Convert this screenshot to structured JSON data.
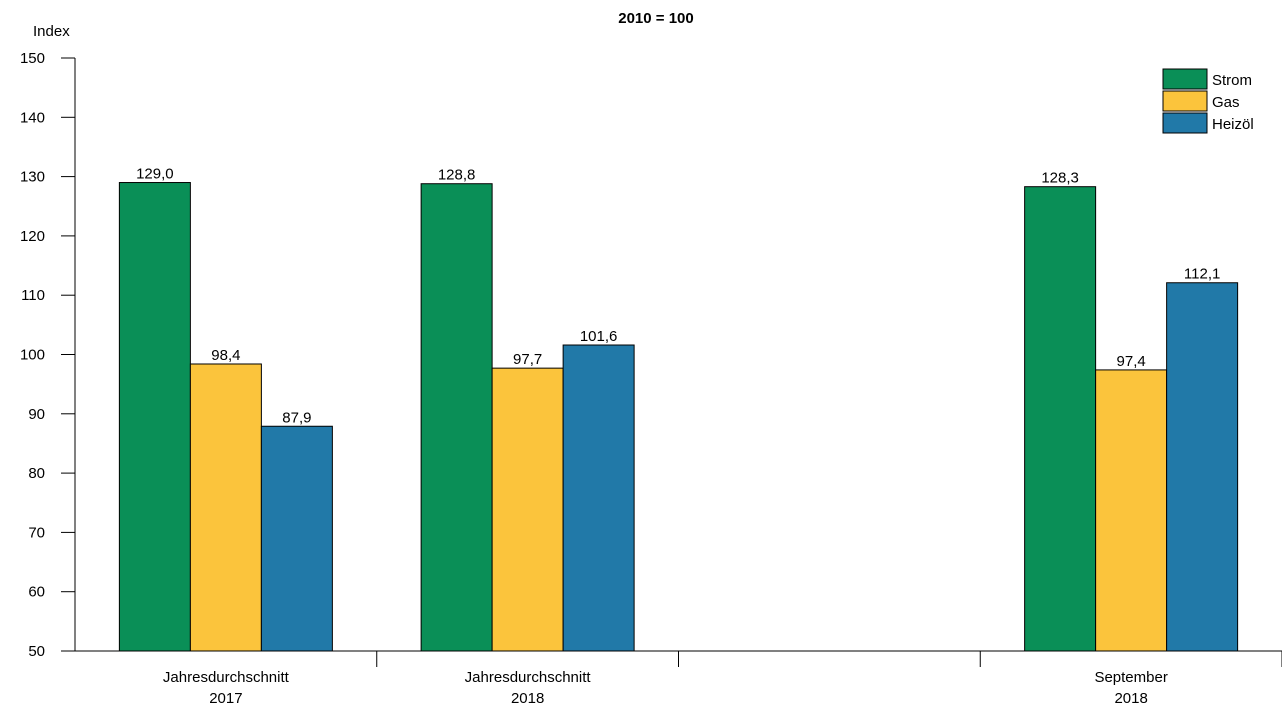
{
  "chart_data": {
    "type": "bar",
    "title": "2010 = 100",
    "ylabel": "Index",
    "xlabel": "",
    "ylim": [
      50,
      150
    ],
    "yticks": [
      50,
      60,
      70,
      80,
      90,
      100,
      110,
      120,
      130,
      140,
      150
    ],
    "categories": [
      [
        "Jahresdurchschnitt",
        "2017"
      ],
      [
        "Jahresdurchschnitt",
        "2018"
      ],
      [
        "",
        ""
      ],
      [
        "September",
        "2018"
      ]
    ],
    "series": [
      {
        "name": "Strom",
        "color": "#0a8f57",
        "values": [
          129.0,
          128.8,
          null,
          128.3
        ],
        "labels": [
          "129,0",
          "128,8",
          "",
          "128,3"
        ]
      },
      {
        "name": "Gas",
        "color": "#fbc43c",
        "values": [
          98.4,
          97.7,
          null,
          97.4
        ],
        "labels": [
          "98,4",
          "97,7",
          "",
          "97,4"
        ]
      },
      {
        "name": "Heizöl",
        "color": "#2179a8",
        "values": [
          87.9,
          101.6,
          null,
          112.1
        ],
        "labels": [
          "87,9",
          "101,6",
          "",
          "112,1"
        ]
      }
    ],
    "legend_position": "top-right",
    "grid": false
  }
}
